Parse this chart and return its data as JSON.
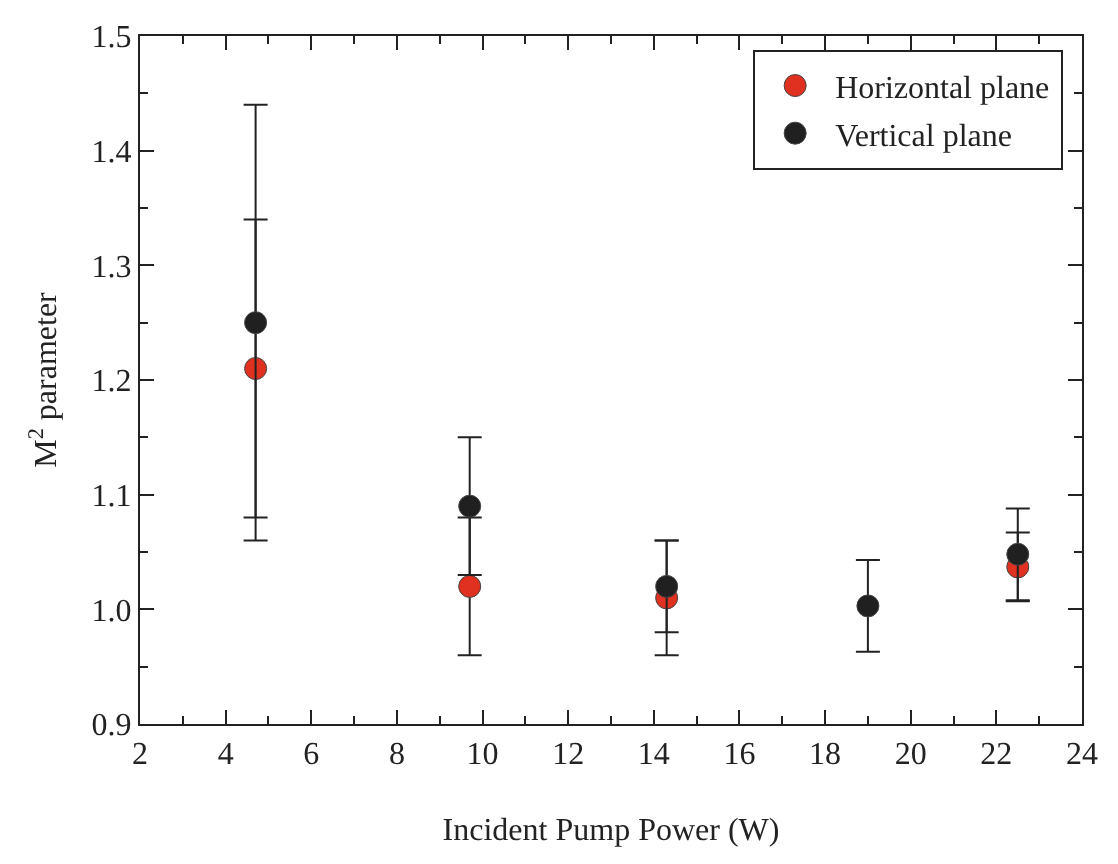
{
  "chart_data": {
    "type": "scatter",
    "xlabel": "Incident Pump Power (W)",
    "ylabel": "M$^{2}$ parameter",
    "x": [
      4.7,
      9.7,
      14.3,
      19.0,
      22.5
    ],
    "series": [
      {
        "name": "Horizontal plane",
        "color": "#e03020",
        "values": [
          1.21,
          1.02,
          1.01,
          null,
          1.037
        ],
        "errors": [
          0.13,
          0.06,
          0.05,
          null,
          0.03
        ]
      },
      {
        "name": "Vertical plane",
        "color": "#202020",
        "values": [
          1.25,
          1.09,
          1.02,
          1.003,
          1.048
        ],
        "errors": [
          0.19,
          0.06,
          0.04,
          0.04,
          0.04
        ]
      }
    ],
    "xlim": [
      2,
      24
    ],
    "xticks": [
      2,
      4,
      6,
      8,
      10,
      12,
      14,
      16,
      18,
      20,
      22,
      24
    ],
    "ylim": [
      0.9,
      1.5
    ],
    "yticks": [
      {
        "value": 0.9,
        "label": "0.9"
      },
      {
        "value": 1.0,
        "label": "1.0"
      },
      {
        "value": 1.1,
        "label": "1.1"
      },
      {
        "value": 1.2,
        "label": "1.2"
      },
      {
        "value": 1.3,
        "label": "1.3"
      },
      {
        "value": 1.4,
        "label": "1.4"
      },
      {
        "value": 1.5,
        "label": "1.5"
      }
    ],
    "grid": false,
    "legend": "top right",
    "marker": "circle"
  }
}
